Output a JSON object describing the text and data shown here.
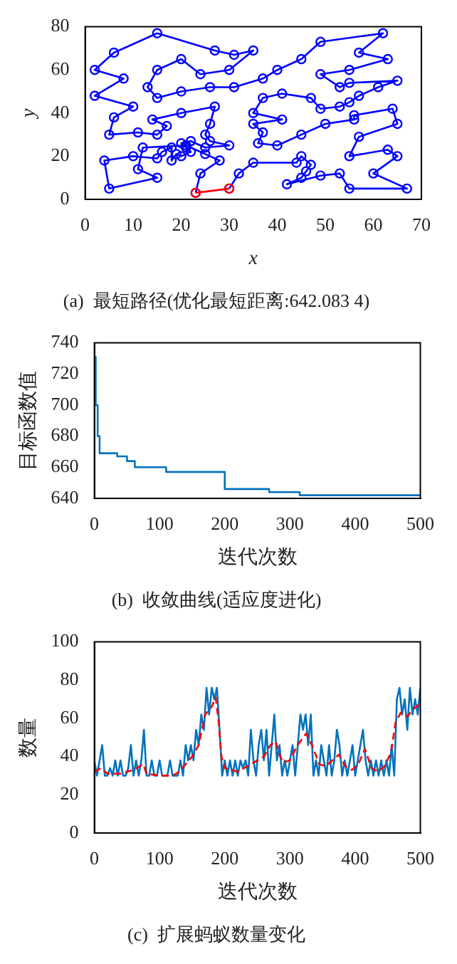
{
  "chart_data": [
    {
      "type": "line",
      "title": "(a)  最短路径(优化最短距离:642.083 4)",
      "xlabel": "x",
      "ylabel": "y",
      "xlim": [
        0,
        70
      ],
      "ylim": [
        0,
        80
      ],
      "xticks": [
        0,
        10,
        20,
        30,
        40,
        50,
        60,
        70
      ],
      "yticks": [
        0,
        20,
        40,
        60,
        80
      ],
      "marker": "circle",
      "series": [
        {
          "color": "#0000ff",
          "x": [
            30,
            32,
            35,
            44,
            45,
            47,
            46,
            45,
            42,
            49,
            53,
            55,
            67,
            60,
            65,
            63,
            55,
            57,
            65,
            64,
            56,
            56,
            50,
            45,
            40,
            36,
            37,
            35,
            41,
            35,
            37,
            41,
            47,
            49,
            53,
            55,
            57,
            61,
            65,
            55,
            53,
            49,
            55,
            63,
            57,
            62,
            49,
            45,
            40,
            37,
            31,
            26,
            20,
            15,
            13,
            15,
            20,
            24,
            30,
            35,
            31,
            27,
            15,
            6,
            2,
            8,
            2,
            10,
            6,
            5,
            11,
            15,
            17,
            14,
            20,
            27,
            26,
            25,
            26,
            30,
            25,
            22,
            20,
            21,
            22,
            20,
            19,
            18,
            18,
            16,
            15,
            10,
            4,
            5,
            15,
            11,
            12,
            21,
            25,
            28,
            24,
            23
          ],
          "values": [
            5,
            12,
            17,
            17,
            20,
            16,
            13,
            10,
            7,
            11,
            12,
            5,
            5,
            12,
            20,
            23,
            20,
            29,
            35,
            42,
            39,
            37,
            35,
            30,
            25,
            26,
            31,
            35,
            37,
            40,
            47,
            49,
            47,
            42,
            43,
            45,
            48,
            52,
            55,
            54,
            52,
            58,
            60,
            65,
            68,
            77,
            73,
            65,
            60,
            56,
            52,
            52,
            50,
            47,
            52,
            60,
            65,
            58,
            60,
            69,
            67,
            69,
            77,
            68,
            60,
            56,
            48,
            43,
            38,
            30,
            31,
            30,
            34,
            37,
            40,
            43,
            35,
            30,
            27,
            25,
            24,
            27,
            26,
            24,
            22,
            20,
            21,
            18,
            24,
            22,
            19,
            20,
            18,
            5,
            10,
            14,
            24,
            25,
            21,
            18,
            12,
            3
          ]
        },
        {
          "color": "#ff0000",
          "x": [
            23,
            30
          ],
          "values": [
            3,
            5
          ]
        }
      ]
    },
    {
      "type": "step",
      "title": "(b)  收敛曲线(适应度进化)",
      "xlabel": "迭代次数",
      "ylabel": "目标函数值",
      "xlim": [
        0,
        500
      ],
      "ylim": [
        640,
        740
      ],
      "xticks": [
        0,
        100,
        200,
        300,
        400,
        500
      ],
      "yticks": [
        640,
        660,
        680,
        700,
        720,
        740
      ],
      "series": [
        {
          "color": "#0072bd",
          "x": [
            1,
            2,
            5,
            8,
            35,
            50,
            62,
            110,
            200,
            268,
            315,
            500
          ],
          "values": [
            731,
            700,
            680,
            669,
            667,
            664,
            660,
            657,
            646,
            644,
            642,
            642
          ]
        }
      ]
    },
    {
      "type": "line",
      "title": "(c)  扩展蚂蚁数量变化",
      "xlabel": "迭代次数",
      "ylabel": "数量",
      "xlim": [
        0,
        500
      ],
      "ylim": [
        0,
        100
      ],
      "xticks": [
        0,
        100,
        200,
        300,
        400,
        500
      ],
      "yticks": [
        0,
        20,
        40,
        60,
        80,
        100
      ],
      "series": [
        {
          "color": "#0072bd",
          "x": [
            0,
            4,
            8,
            12,
            16,
            20,
            24,
            28,
            32,
            36,
            40,
            44,
            48,
            52,
            56,
            60,
            64,
            68,
            72,
            76,
            80,
            84,
            88,
            92,
            96,
            100,
            104,
            108,
            112,
            116,
            120,
            124,
            128,
            132,
            136,
            140,
            144,
            148,
            152,
            156,
            160,
            164,
            168,
            172,
            176,
            180,
            184,
            188,
            192,
            196,
            200,
            204,
            208,
            212,
            216,
            220,
            224,
            228,
            232,
            236,
            240,
            244,
            248,
            252,
            256,
            260,
            264,
            268,
            272,
            276,
            280,
            284,
            288,
            292,
            296,
            300,
            304,
            308,
            312,
            316,
            320,
            324,
            328,
            332,
            336,
            340,
            344,
            348,
            352,
            356,
            360,
            364,
            368,
            372,
            376,
            380,
            384,
            388,
            392,
            396,
            400,
            404,
            408,
            412,
            416,
            420,
            424,
            428,
            432,
            436,
            440,
            444,
            448,
            452,
            456,
            460,
            464,
            468,
            472,
            476,
            480,
            484,
            488,
            492,
            496,
            500
          ],
          "values": [
            38,
            30,
            38,
            46,
            30,
            30,
            34,
            30,
            38,
            30,
            38,
            30,
            30,
            34,
            46,
            30,
            38,
            30,
            38,
            54,
            30,
            30,
            38,
            30,
            30,
            38,
            30,
            30,
            30,
            38,
            30,
            30,
            30,
            38,
            30,
            46,
            38,
            46,
            38,
            54,
            46,
            62,
            54,
            76,
            62,
            76,
            70,
            76,
            54,
            30,
            38,
            30,
            38,
            30,
            38,
            30,
            38,
            34,
            38,
            30,
            54,
            38,
            30,
            46,
            54,
            38,
            54,
            30,
            46,
            62,
            38,
            46,
            30,
            38,
            30,
            38,
            46,
            30,
            46,
            62,
            54,
            62,
            46,
            62,
            30,
            38,
            30,
            46,
            38,
            30,
            46,
            30,
            38,
            54,
            46,
            30,
            38,
            30,
            38,
            46,
            30,
            38,
            46,
            54,
            38,
            30,
            38,
            30,
            38,
            30,
            38,
            30,
            38,
            30,
            46,
            30,
            70,
            76,
            62,
            70,
            54,
            76,
            62,
            70,
            62,
            76
          ]
        },
        {
          "color": "#ff0000",
          "line_style": "dashed",
          "x": [
            0,
            10,
            20,
            40,
            60,
            75,
            80,
            100,
            120,
            130,
            140,
            150,
            160,
            170,
            180,
            186,
            190,
            195,
            200,
            210,
            220,
            230,
            240,
            250,
            260,
            270,
            278,
            285,
            290,
            300,
            310,
            320,
            325,
            335,
            345,
            355,
            365,
            375,
            385,
            395,
            405,
            415,
            425,
            435,
            445,
            455,
            462,
            470,
            480,
            490,
            500
          ],
          "values": [
            32,
            34,
            31,
            31,
            33,
            36,
            31,
            30,
            30,
            32,
            36,
            40,
            46,
            62,
            66,
            71,
            60,
            40,
            34,
            33,
            32,
            34,
            36,
            38,
            40,
            46,
            48,
            40,
            37,
            38,
            45,
            50,
            52,
            45,
            36,
            35,
            38,
            41,
            35,
            33,
            36,
            44,
            34,
            32,
            35,
            42,
            58,
            63,
            61,
            65,
            68
          ]
        }
      ]
    }
  ]
}
